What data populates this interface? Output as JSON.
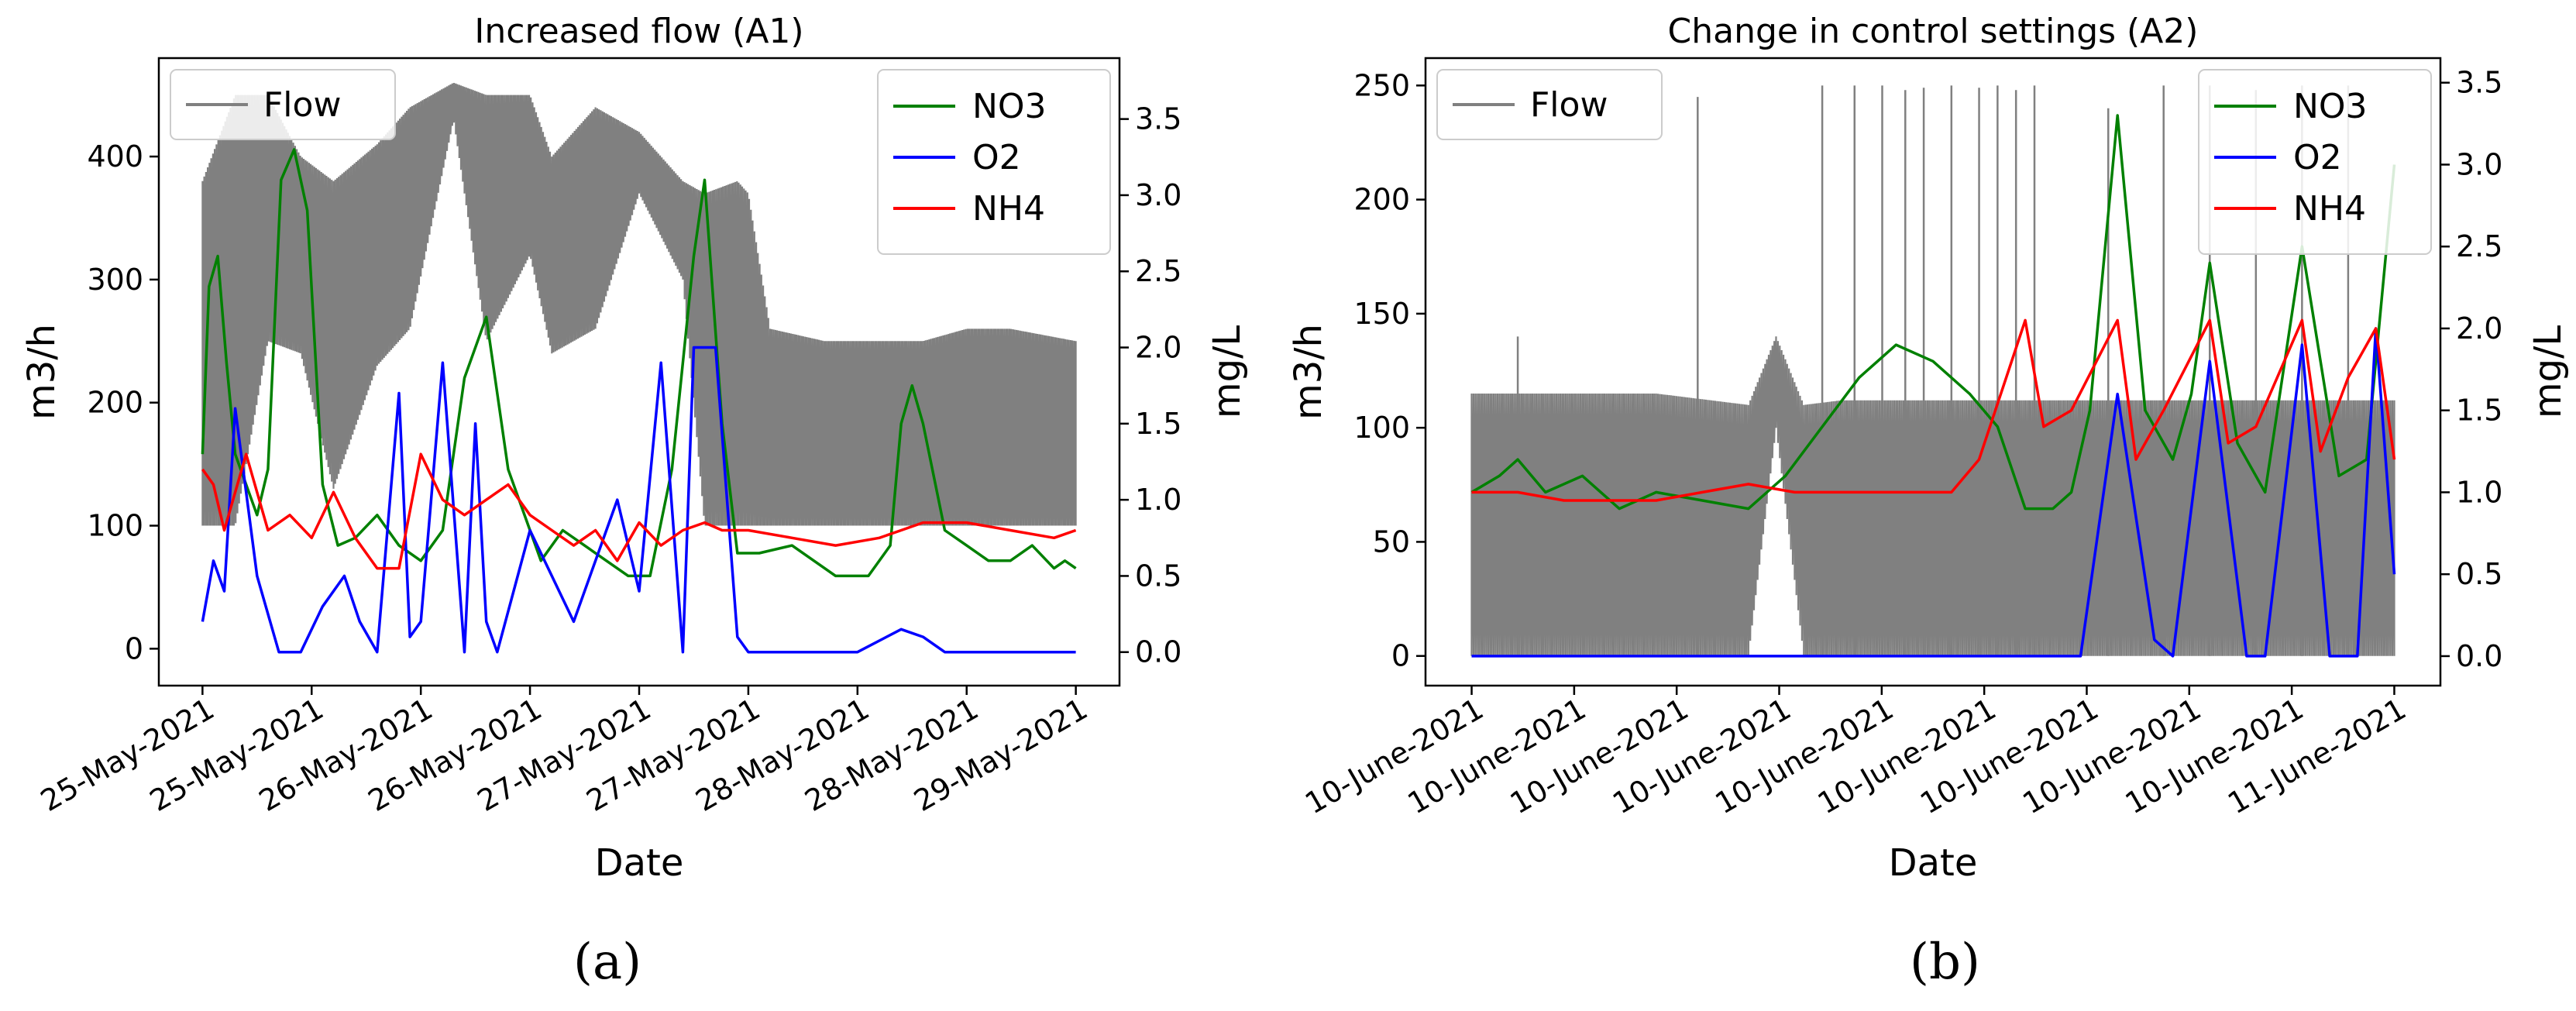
{
  "chart_data": [
    {
      "type": "line",
      "panel_label": "a",
      "title": "Increased flow (A1)",
      "xlabel": "Date",
      "ylabel": "m3/h",
      "y2label": "mg/L",
      "x_ticks": [
        "25-May-2021",
        "25-May-2021",
        "26-May-2021",
        "26-May-2021",
        "27-May-2021",
        "27-May-2021",
        "28-May-2021",
        "28-May-2021",
        "29-May-2021"
      ],
      "x_range_days": [
        0,
        4
      ],
      "ylim": [
        -30,
        480
      ],
      "yticks": [
        0,
        100,
        200,
        300,
        400
      ],
      "y2lim": [
        -0.22,
        3.9
      ],
      "y2ticks": [
        0.0,
        0.5,
        1.0,
        1.5,
        2.0,
        2.5,
        3.0,
        3.5
      ],
      "legend_left": [
        "Flow"
      ],
      "legend_right": [
        "NO3",
        "O2",
        "NH4"
      ],
      "colors": {
        "Flow": "#808080",
        "NO3": "#008000",
        "O2": "#0000ff",
        "NH4": "#ff0000"
      },
      "series": [
        {
          "name": "Flow",
          "axis": "left",
          "envelope": true,
          "x": [
            0,
            0.15,
            0.3,
            0.45,
            0.6,
            0.8,
            0.95,
            1.15,
            1.3,
            1.5,
            1.6,
            1.8,
            2.0,
            2.2,
            2.3,
            2.45,
            2.5,
            2.6,
            2.85,
            3.1,
            3.3,
            3.5,
            3.7,
            3.85,
            4.0
          ],
          "low": [
            100,
            100,
            250,
            240,
            130,
            230,
            260,
            430,
            250,
            320,
            240,
            260,
            370,
            300,
            100,
            100,
            100,
            100,
            100,
            100,
            100,
            100,
            100,
            100,
            100
          ],
          "high": [
            380,
            450,
            450,
            400,
            380,
            410,
            440,
            460,
            450,
            450,
            400,
            440,
            420,
            380,
            370,
            380,
            370,
            260,
            250,
            250,
            250,
            260,
            260,
            255,
            250
          ]
        },
        {
          "name": "NO3",
          "axis": "right",
          "x": [
            0,
            0.03,
            0.07,
            0.11,
            0.15,
            0.2,
            0.25,
            0.3,
            0.36,
            0.42,
            0.48,
            0.55,
            0.62,
            0.7,
            0.8,
            0.9,
            1.0,
            1.1,
            1.2,
            1.3,
            1.4,
            1.5,
            1.55,
            1.65,
            1.75,
            1.85,
            1.95,
            2.05,
            2.15,
            2.25,
            2.3,
            2.38,
            2.45,
            2.55,
            2.7,
            2.9,
            3.05,
            3.15,
            3.2,
            3.25,
            3.3,
            3.4,
            3.5,
            3.6,
            3.7,
            3.8,
            3.9,
            3.95,
            4.0
          ],
          "y": [
            1.3,
            2.4,
            2.6,
            1.9,
            1.3,
            1.1,
            0.9,
            1.2,
            3.1,
            3.3,
            2.9,
            1.1,
            0.7,
            0.75,
            0.9,
            0.7,
            0.6,
            0.8,
            1.8,
            2.2,
            1.2,
            0.8,
            0.6,
            0.8,
            0.7,
            0.6,
            0.5,
            0.5,
            1.2,
            2.6,
            3.1,
            1.5,
            0.65,
            0.65,
            0.7,
            0.5,
            0.5,
            0.7,
            1.5,
            1.75,
            1.5,
            0.8,
            0.7,
            0.6,
            0.6,
            0.7,
            0.55,
            0.6,
            0.55
          ]
        },
        {
          "name": "O2",
          "axis": "right",
          "x": [
            0,
            0.05,
            0.1,
            0.15,
            0.25,
            0.35,
            0.45,
            0.55,
            0.65,
            0.72,
            0.8,
            0.9,
            0.95,
            1.0,
            1.1,
            1.2,
            1.25,
            1.3,
            1.35,
            1.5,
            1.7,
            1.9,
            2.0,
            2.1,
            2.2,
            2.25,
            2.35,
            2.45,
            2.5,
            2.7,
            3.0,
            3.2,
            3.3,
            3.4,
            3.6,
            3.8,
            4.0
          ],
          "y": [
            0.2,
            0.6,
            0.4,
            1.6,
            0.5,
            0.0,
            0.0,
            0.3,
            0.5,
            0.2,
            0.0,
            1.7,
            0.1,
            0.2,
            1.9,
            0.0,
            1.5,
            0.2,
            0.0,
            0.8,
            0.2,
            1.0,
            0.4,
            1.9,
            0.0,
            2.0,
            2.0,
            0.1,
            0.0,
            0.0,
            0.0,
            0.15,
            0.1,
            0.0,
            0.0,
            0.0,
            0.0
          ]
        },
        {
          "name": "NH4",
          "axis": "right",
          "x": [
            0,
            0.05,
            0.1,
            0.2,
            0.3,
            0.4,
            0.5,
            0.6,
            0.7,
            0.8,
            0.9,
            1.0,
            1.1,
            1.2,
            1.3,
            1.4,
            1.5,
            1.6,
            1.7,
            1.8,
            1.9,
            2.0,
            2.1,
            2.2,
            2.3,
            2.38,
            2.5,
            2.7,
            2.9,
            3.1,
            3.2,
            3.3,
            3.5,
            3.7,
            3.9,
            4.0
          ],
          "y": [
            1.2,
            1.1,
            0.8,
            1.3,
            0.8,
            0.9,
            0.75,
            1.05,
            0.75,
            0.55,
            0.55,
            1.3,
            1.0,
            0.9,
            1.0,
            1.1,
            0.9,
            0.8,
            0.7,
            0.8,
            0.6,
            0.85,
            0.7,
            0.8,
            0.85,
            0.8,
            0.8,
            0.75,
            0.7,
            0.75,
            0.8,
            0.85,
            0.85,
            0.8,
            0.75,
            0.8
          ]
        }
      ]
    },
    {
      "type": "line",
      "panel_label": "b",
      "title": "Change in control settings (A2)",
      "xlabel": "Date",
      "ylabel": "m3/h",
      "y2label": "mg/L",
      "x_ticks": [
        "10-June-2021",
        "10-June-2021",
        "10-June-2021",
        "10-June-2021",
        "10-June-2021",
        "10-June-2021",
        "10-June-2021",
        "10-June-2021",
        "10-June-2021",
        "11-June-2021"
      ],
      "x_range_days": [
        0,
        1
      ],
      "ylim": [
        -13,
        262
      ],
      "yticks": [
        0,
        50,
        100,
        150,
        200,
        250
      ],
      "y2lim": [
        -0.18,
        3.65
      ],
      "y2ticks": [
        0.0,
        0.5,
        1.0,
        1.5,
        2.0,
        2.5,
        3.0,
        3.5
      ],
      "legend_left": [
        "Flow"
      ],
      "legend_right": [
        "NO3",
        "O2",
        "NH4"
      ],
      "colors": {
        "Flow": "#808080",
        "NO3": "#008000",
        "O2": "#0000ff",
        "NH4": "#ff0000"
      },
      "series": [
        {
          "name": "Flow",
          "axis": "left",
          "envelope": true,
          "x": [
            0,
            0.2,
            0.3,
            0.33,
            0.36,
            0.4,
            0.5,
            0.6,
            0.7,
            0.8,
            0.9,
            1.0
          ],
          "low": [
            0,
            0,
            0,
            100,
            0,
            0,
            0,
            0,
            0,
            0,
            0,
            0
          ],
          "high": [
            115,
            115,
            110,
            140,
            110,
            112,
            112,
            112,
            112,
            112,
            112,
            112
          ],
          "spikes_x": [
            0.05,
            0.245,
            0.38,
            0.415,
            0.445,
            0.47,
            0.49,
            0.52,
            0.55,
            0.57,
            0.59,
            0.61,
            0.69,
            0.75,
            0.8,
            0.85,
            0.9,
            0.95
          ],
          "spikes_y": [
            140,
            245,
            250,
            250,
            250,
            248,
            249,
            250,
            249,
            250,
            248,
            250,
            240,
            250,
            250,
            248,
            250,
            250
          ]
        },
        {
          "name": "NO3",
          "axis": "right",
          "x": [
            0,
            0.03,
            0.05,
            0.08,
            0.12,
            0.16,
            0.2,
            0.25,
            0.3,
            0.34,
            0.38,
            0.42,
            0.46,
            0.5,
            0.54,
            0.57,
            0.6,
            0.63,
            0.65,
            0.67,
            0.7,
            0.73,
            0.76,
            0.78,
            0.8,
            0.83,
            0.86,
            0.9,
            0.94,
            0.97,
            1.0
          ],
          "y": [
            1.0,
            1.1,
            1.2,
            1.0,
            1.1,
            0.9,
            1.0,
            0.95,
            0.9,
            1.1,
            1.4,
            1.7,
            1.9,
            1.8,
            1.6,
            1.4,
            0.9,
            0.9,
            1.0,
            1.5,
            3.3,
            1.5,
            1.2,
            1.6,
            2.4,
            1.3,
            1.0,
            2.5,
            1.1,
            1.2,
            3.0
          ]
        },
        {
          "name": "O2",
          "axis": "right",
          "x": [
            0,
            0.55,
            0.6,
            0.62,
            0.66,
            0.7,
            0.74,
            0.76,
            0.8,
            0.84,
            0.86,
            0.9,
            0.93,
            0.96,
            0.98,
            1.0
          ],
          "y": [
            0.0,
            0.0,
            0.0,
            0.0,
            0.0,
            1.6,
            0.1,
            0.0,
            1.8,
            0.0,
            0.0,
            1.9,
            0.0,
            0.0,
            2.0,
            0.5
          ]
        },
        {
          "name": "NH4",
          "axis": "right",
          "x": [
            0,
            0.05,
            0.1,
            0.15,
            0.2,
            0.25,
            0.3,
            0.35,
            0.4,
            0.45,
            0.5,
            0.52,
            0.55,
            0.6,
            0.62,
            0.65,
            0.7,
            0.72,
            0.75,
            0.8,
            0.82,
            0.85,
            0.9,
            0.92,
            0.95,
            0.98,
            1.0
          ],
          "y": [
            1.0,
            1.0,
            0.95,
            0.95,
            0.95,
            1.0,
            1.05,
            1.0,
            1.0,
            1.0,
            1.0,
            1.0,
            1.2,
            2.05,
            1.4,
            1.5,
            2.05,
            1.2,
            1.5,
            2.05,
            1.3,
            1.4,
            2.05,
            1.25,
            1.7,
            2.0,
            1.2
          ]
        }
      ]
    }
  ],
  "captions": {
    "a": "(a)",
    "b": "(b)"
  }
}
